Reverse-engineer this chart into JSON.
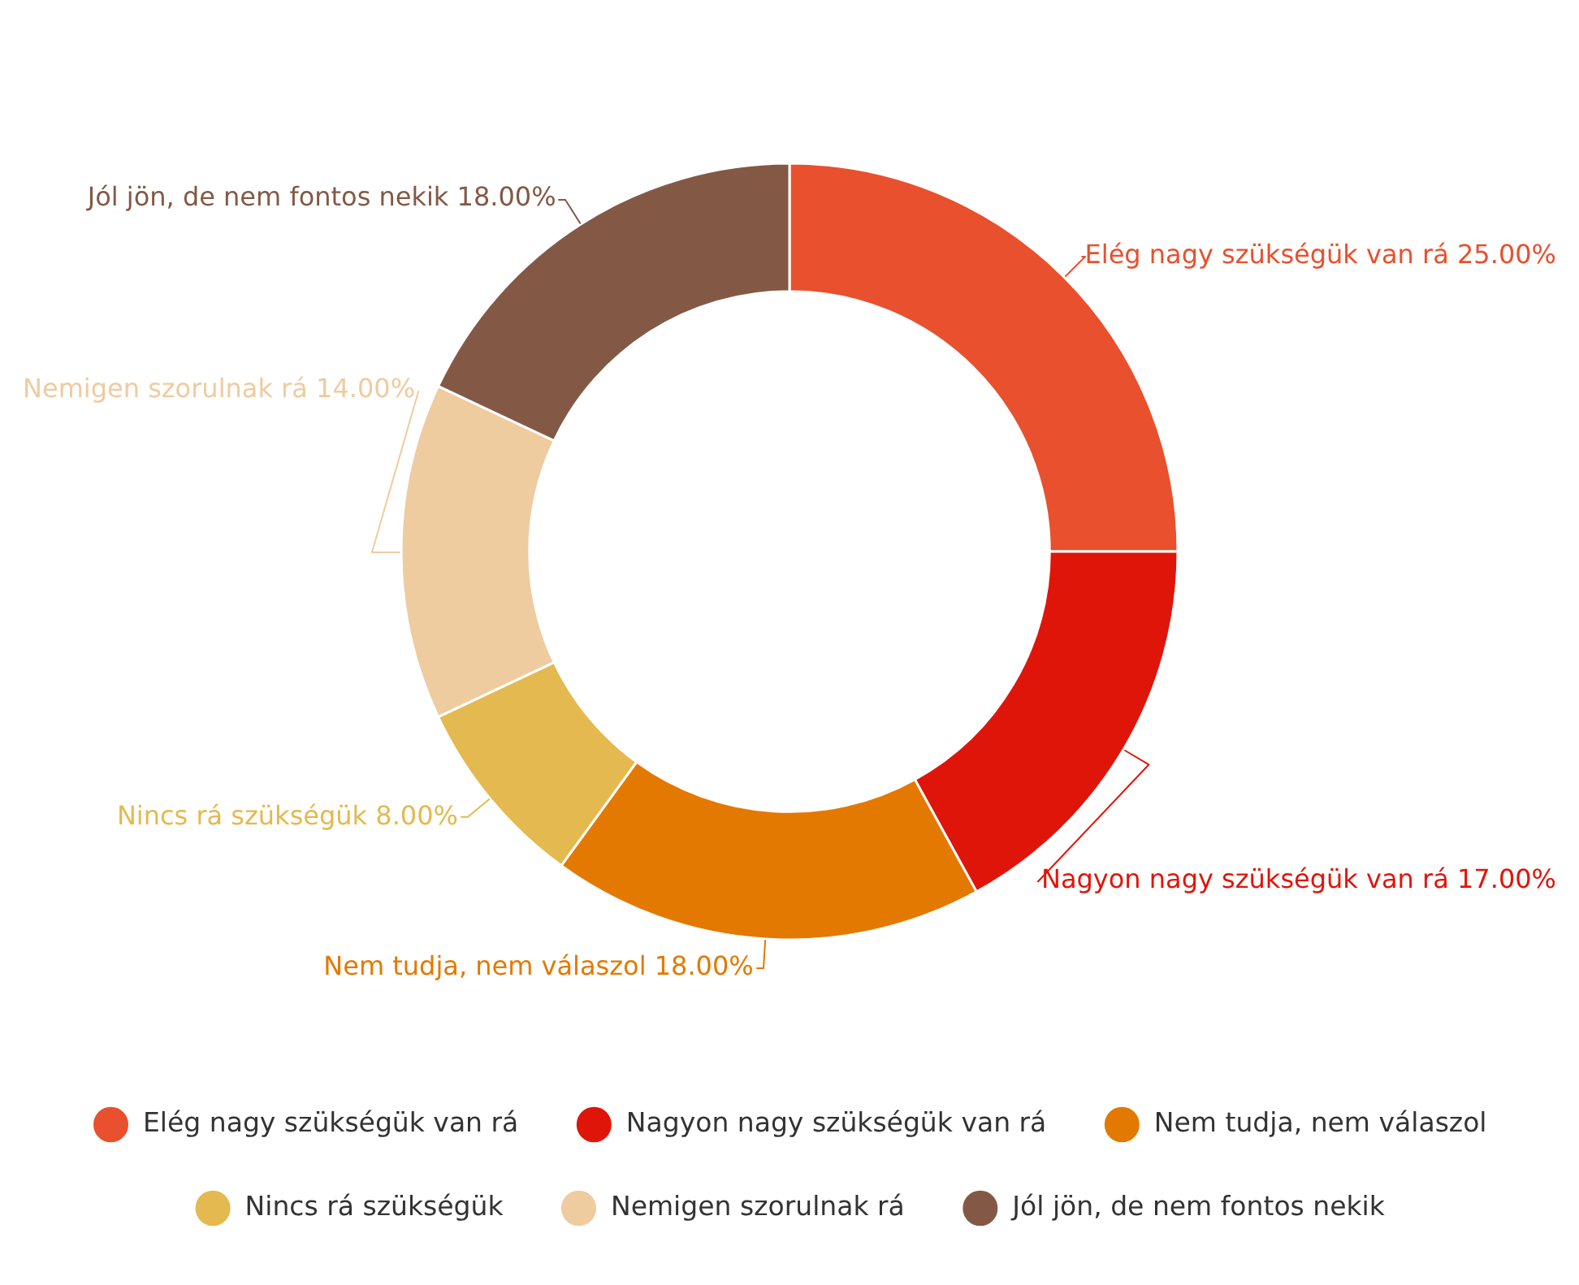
{
  "chart_data": {
    "type": "donut",
    "categories": [
      "Elég nagy szükségük van rá",
      "Nagyon nagy szükségük van rá",
      "Nem tudja, nem válaszol",
      "Nincs rá szükségük",
      "Nemigen szorulnak rá",
      "Jól jön, de nem fontos nekik"
    ],
    "values": [
      25,
      17,
      18,
      8,
      14,
      18
    ],
    "colors": [
      "#e8502e",
      "#e0150a",
      "#e37900",
      "#e4b94f",
      "#efcba0",
      "#835946"
    ],
    "value_labels": [
      "25.00%",
      "17.00%",
      "18.00%",
      "8.00%",
      "14.00%",
      "18.00%"
    ],
    "legend": "bottom"
  }
}
